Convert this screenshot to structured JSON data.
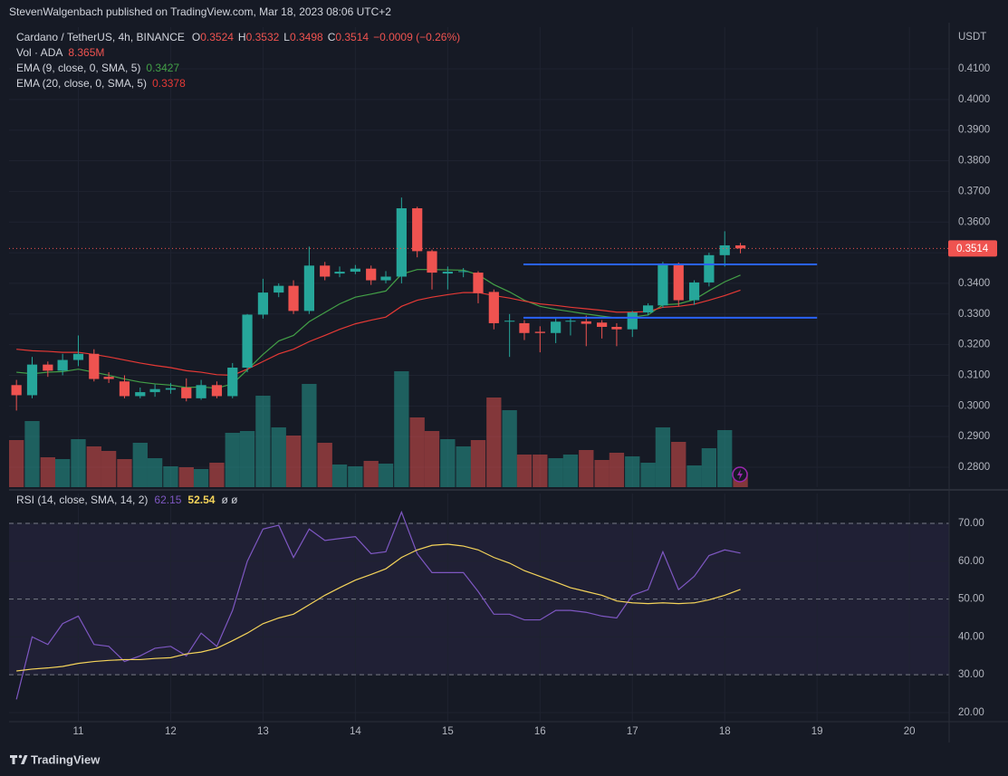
{
  "header": "StevenWalgenbach published on TradingView.com, Mar 18, 2023 08:06 UTC+2",
  "footer": "TradingView",
  "chart_data": [
    {
      "type": "candlestick",
      "title": "Cardano / TetherUS, 4h, BINANCE",
      "legend_keys": {
        "open": "O",
        "high": "H",
        "low": "L",
        "close": "C"
      },
      "change": "−0.0009 (−0.26%)",
      "axis_label": "USDT",
      "colors": {
        "up": "#26a69a",
        "down": "#ef5350"
      },
      "x": [
        10.33,
        10.5,
        10.67,
        10.83,
        11,
        11.17,
        11.33,
        11.5,
        11.67,
        11.83,
        12,
        12.17,
        12.33,
        12.5,
        12.67,
        12.83,
        13,
        13.17,
        13.33,
        13.5,
        13.67,
        13.83,
        14,
        14.17,
        14.33,
        14.5,
        14.67,
        14.83,
        15,
        15.17,
        15.33,
        15.5,
        15.67,
        15.83,
        16,
        16.17,
        16.33,
        16.5,
        16.67,
        16.83,
        17,
        17.17,
        17.33,
        17.5,
        17.67,
        17.83,
        18,
        18.17
      ],
      "open": [
        0.3068,
        0.3035,
        0.3135,
        0.3115,
        0.315,
        0.317,
        0.3095,
        0.308,
        0.3032,
        0.3045,
        0.3053,
        0.306,
        0.3025,
        0.3068,
        0.3032,
        0.3125,
        0.3298,
        0.337,
        0.3392,
        0.331,
        0.3458,
        0.3432,
        0.3438,
        0.3448,
        0.341,
        0.3422,
        0.3645,
        0.3505,
        0.3432,
        0.3437,
        0.3435,
        0.3372,
        0.3275,
        0.327,
        0.3242,
        0.3238,
        0.3275,
        0.3276,
        0.3272,
        0.3258,
        0.325,
        0.3305,
        0.3328,
        0.3462,
        0.3345,
        0.3403,
        0.3492,
        0.3524
      ],
      "high": [
        0.3085,
        0.316,
        0.3145,
        0.317,
        0.323,
        0.3185,
        0.311,
        0.31,
        0.306,
        0.307,
        0.3075,
        0.309,
        0.3085,
        0.308,
        0.314,
        0.33,
        0.3415,
        0.34,
        0.341,
        0.352,
        0.347,
        0.3455,
        0.346,
        0.3458,
        0.344,
        0.368,
        0.365,
        0.351,
        0.3455,
        0.345,
        0.344,
        0.338,
        0.33,
        0.328,
        0.326,
        0.3285,
        0.329,
        0.3295,
        0.328,
        0.327,
        0.331,
        0.3335,
        0.347,
        0.3468,
        0.341,
        0.35,
        0.357,
        0.3532
      ],
      "low": [
        0.2985,
        0.3025,
        0.3095,
        0.31,
        0.313,
        0.308,
        0.3075,
        0.3025,
        0.3025,
        0.303,
        0.304,
        0.3015,
        0.302,
        0.3025,
        0.3025,
        0.311,
        0.3285,
        0.3355,
        0.33,
        0.33,
        0.341,
        0.342,
        0.343,
        0.3395,
        0.34,
        0.34,
        0.3485,
        0.338,
        0.338,
        0.342,
        0.3335,
        0.325,
        0.316,
        0.3215,
        0.3175,
        0.3205,
        0.323,
        0.3195,
        0.322,
        0.3195,
        0.3225,
        0.3295,
        0.332,
        0.3325,
        0.333,
        0.339,
        0.3455,
        0.3498
      ],
      "close": [
        0.3035,
        0.3135,
        0.3115,
        0.315,
        0.317,
        0.3088,
        0.3088,
        0.3032,
        0.3045,
        0.3055,
        0.3058,
        0.3025,
        0.3068,
        0.3032,
        0.3125,
        0.3298,
        0.337,
        0.3392,
        0.331,
        0.3458,
        0.3422,
        0.3438,
        0.3448,
        0.341,
        0.3422,
        0.3645,
        0.3505,
        0.3435,
        0.3438,
        0.344,
        0.3368,
        0.327,
        0.3278,
        0.3238,
        0.3238,
        0.3275,
        0.3278,
        0.3268,
        0.3258,
        0.325,
        0.3305,
        0.3328,
        0.3462,
        0.3345,
        0.3403,
        0.3492,
        0.3524,
        0.3514
      ],
      "volume": {
        "name": "Vol · ADA",
        "unit": "M",
        "values": [
          26,
          36.5,
          16.5,
          15.5,
          26.5,
          22.5,
          20,
          15.5,
          24.5,
          16,
          11.5,
          11,
          10,
          13.5,
          30,
          31,
          50.5,
          33,
          28.5,
          57,
          24.5,
          12.5,
          11.5,
          14.5,
          13,
          64,
          38.5,
          31,
          26.5,
          22.5,
          26,
          49.5,
          42.5,
          18,
          18,
          16,
          18,
          20.5,
          15,
          19,
          17,
          13.5,
          33,
          25,
          12,
          21.5,
          31.5,
          8.365
        ]
      },
      "series": [
        {
          "name": "EMA (9, close, 0, SMA, 5)",
          "color": "#43a047",
          "values": [
            0.311,
            0.3105,
            0.311,
            0.3112,
            0.312,
            0.311,
            0.31,
            0.3088,
            0.3078,
            0.3072,
            0.3068,
            0.306,
            0.3062,
            0.3058,
            0.3072,
            0.3118,
            0.3168,
            0.3212,
            0.323,
            0.3275,
            0.3305,
            0.3333,
            0.3355,
            0.3365,
            0.3375,
            0.343,
            0.3445,
            0.3445,
            0.3444,
            0.3443,
            0.3428,
            0.3396,
            0.3372,
            0.3345,
            0.3325,
            0.3315,
            0.3308,
            0.33,
            0.3293,
            0.3287,
            0.329,
            0.3297,
            0.333,
            0.3333,
            0.3347,
            0.3376,
            0.3405,
            0.3427
          ]
        },
        {
          "name": "EMA (20, close, 0, SMA, 5)",
          "color": "#e53935",
          "values": [
            0.3185,
            0.318,
            0.3178,
            0.3175,
            0.3175,
            0.3168,
            0.316,
            0.315,
            0.314,
            0.3132,
            0.3125,
            0.3115,
            0.311,
            0.3102,
            0.31,
            0.312,
            0.3145,
            0.317,
            0.3185,
            0.321,
            0.323,
            0.325,
            0.3268,
            0.328,
            0.329,
            0.3325,
            0.3345,
            0.3355,
            0.3363,
            0.337,
            0.337,
            0.336,
            0.3352,
            0.3342,
            0.3333,
            0.3328,
            0.3322,
            0.3317,
            0.3312,
            0.3306,
            0.3306,
            0.3308,
            0.3322,
            0.3325,
            0.3332,
            0.3345,
            0.336,
            0.3378
          ]
        }
      ],
      "lines": [
        {
          "value": 0.3462,
          "from": 15.82,
          "to": 19,
          "color": "#2962ff"
        },
        {
          "value": 0.3288,
          "from": 15.82,
          "to": 19,
          "color": "#2962ff"
        }
      ],
      "xlim": [
        10.25,
        20.43
      ],
      "ylim": [
        0.2735,
        0.4236
      ],
      "yticks": [
        {
          "value": 0.28,
          "label": "0.2800"
        },
        {
          "value": 0.29,
          "label": "0.2900"
        },
        {
          "value": 0.3,
          "label": "0.3000"
        },
        {
          "value": 0.31,
          "label": "0.3100"
        },
        {
          "value": 0.32,
          "label": "0.3200"
        },
        {
          "value": 0.33,
          "label": "0.3300"
        },
        {
          "value": 0.34,
          "label": "0.3400"
        },
        {
          "value": 0.35,
          "label": "0.3500"
        },
        {
          "value": 0.36,
          "label": "0.3600"
        },
        {
          "value": 0.37,
          "label": "0.3700"
        },
        {
          "value": 0.38,
          "label": "0.3800"
        },
        {
          "value": 0.39,
          "label": "0.3900"
        },
        {
          "value": 0.4,
          "label": "0.4000"
        },
        {
          "value": 0.41,
          "label": "0.4100"
        }
      ],
      "grid": true
    },
    {
      "type": "line",
      "title": "RSI (14, close, SMA, 14, 2)",
      "na_values": "ø  ø",
      "x": [
        10.33,
        10.5,
        10.67,
        10.83,
        11,
        11.17,
        11.33,
        11.5,
        11.67,
        11.83,
        12,
        12.17,
        12.33,
        12.5,
        12.67,
        12.83,
        13,
        13.17,
        13.33,
        13.5,
        13.67,
        13.83,
        14,
        14.17,
        14.33,
        14.5,
        14.67,
        14.83,
        15,
        15.17,
        15.33,
        15.5,
        15.67,
        15.83,
        16,
        16.17,
        16.33,
        16.5,
        16.67,
        16.83,
        17,
        17.17,
        17.33,
        17.5,
        17.67,
        17.83,
        18,
        18.17
      ],
      "series": [
        {
          "color": "#7e57c2",
          "values": [
            23.5,
            40,
            38,
            43.5,
            45.5,
            38,
            37.5,
            33.5,
            35,
            37,
            37.5,
            35,
            41,
            37.5,
            47,
            60,
            68.5,
            69.5,
            61,
            68.5,
            65.5,
            66,
            66.5,
            62,
            62.5,
            73,
            62,
            57,
            57,
            57,
            52,
            46,
            46,
            44.5,
            44.5,
            47,
            47,
            46.5,
            45.5,
            45,
            51,
            52.5,
            62.5,
            52.5,
            56,
            61.5,
            63,
            62.15
          ]
        },
        {
          "color": "#f5d45a",
          "values": [
            31,
            31.5,
            31.8,
            32.2,
            33,
            33.5,
            33.8,
            34,
            34,
            34.3,
            34.5,
            35.5,
            36,
            37,
            39,
            41,
            43.5,
            45,
            46,
            48.5,
            51,
            53,
            55,
            56.5,
            58,
            61,
            63,
            64.2,
            64.5,
            64,
            63,
            61,
            59.5,
            57.5,
            56,
            54.5,
            53,
            52,
            51,
            49.5,
            49,
            48.8,
            49,
            48.8,
            49,
            49.8,
            51,
            52.54
          ]
        }
      ],
      "band": [
        30,
        70
      ],
      "midline": 50,
      "band_color": "#7e57c2",
      "xlim": [
        10.25,
        20.43
      ],
      "xticks": [
        11,
        12,
        13,
        14,
        15,
        16,
        17,
        18,
        19,
        20
      ],
      "ylim": [
        17.6,
        77.9
      ],
      "yticks": [
        {
          "value": 20,
          "label": "20.00"
        },
        {
          "value": 30,
          "label": "30.00"
        },
        {
          "value": 40,
          "label": "40.00"
        },
        {
          "value": 50,
          "label": "50.00"
        },
        {
          "value": 60,
          "label": "60.00"
        },
        {
          "value": 70,
          "label": "70.00"
        }
      ],
      "grid": true
    }
  ]
}
